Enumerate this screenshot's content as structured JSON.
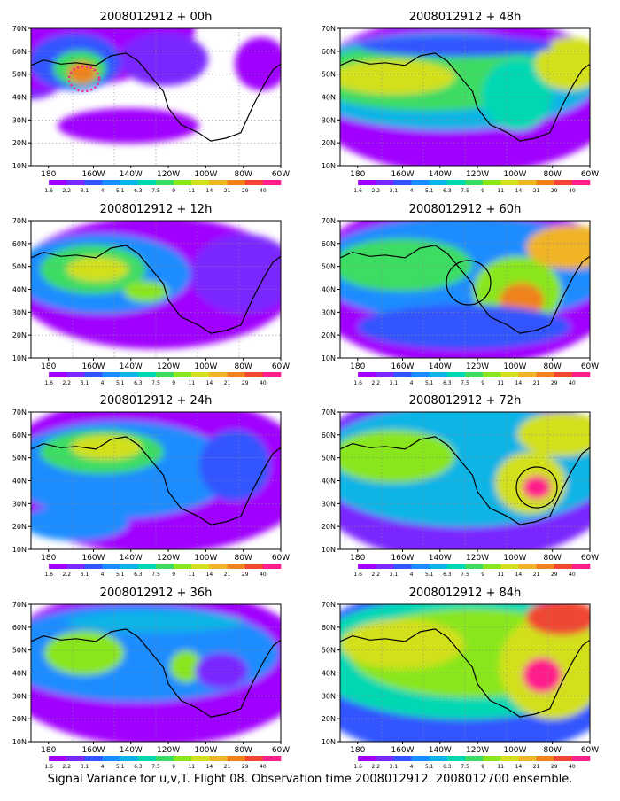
{
  "caption": "Signal Variance for u,v,T. Flight 08. Observation time 2008012912. 2008012700 ensemble.",
  "y_axis_labels": [
    "70N",
    "60N",
    "50N",
    "40N",
    "30N",
    "20N",
    "10N"
  ],
  "x_axis_labels": [
    "180",
    "160W",
    "140W",
    "120W",
    "100W",
    "80W",
    "60W"
  ],
  "colorbar": {
    "labels": [
      "1.6",
      "2.2",
      "3.1",
      "4",
      "5.1",
      "6.3",
      "7.5",
      "9",
      "11",
      "14",
      "21",
      "29",
      "40"
    ],
    "colors": [
      "#ffffff",
      "#a000ff",
      "#7a28ff",
      "#3255ff",
      "#1a8cff",
      "#0fb4e6",
      "#00d8b4",
      "#3cdc64",
      "#8ae61e",
      "#d2e01e",
      "#f0b428",
      "#f0821e",
      "#f04632",
      "#ff1e8c"
    ]
  },
  "panels": [
    {
      "title": "2008012912 + 00h"
    },
    {
      "title": "2008012912 + 48h"
    },
    {
      "title": "2008012912 + 12h"
    },
    {
      "title": "2008012912 + 60h"
    },
    {
      "title": "2008012912 + 24h"
    },
    {
      "title": "2008012912 + 72h"
    },
    {
      "title": "2008012912 + 36h"
    },
    {
      "title": "2008012912 + 84h"
    }
  ]
}
